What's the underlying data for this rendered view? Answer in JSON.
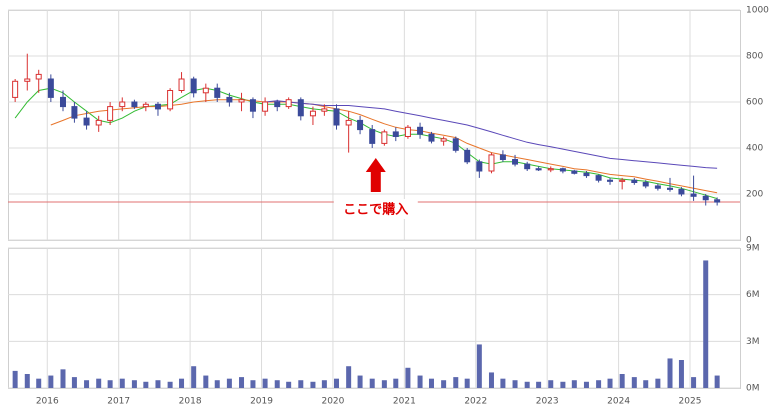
{
  "chart_data": [
    {
      "type": "candlestick",
      "x": [
        2015.55,
        2015.72,
        2015.88,
        2016.05,
        2016.22,
        2016.38,
        2016.55,
        2016.72,
        2016.88,
        2017.05,
        2017.22,
        2017.38,
        2017.55,
        2017.72,
        2017.88,
        2018.05,
        2018.22,
        2018.38,
        2018.55,
        2018.72,
        2018.88,
        2019.05,
        2019.22,
        2019.38,
        2019.55,
        2019.72,
        2019.88,
        2020.05,
        2020.22,
        2020.38,
        2020.55,
        2020.72,
        2020.88,
        2021.05,
        2021.22,
        2021.38,
        2021.55,
        2021.72,
        2021.88,
        2022.05,
        2022.22,
        2022.38,
        2022.55,
        2022.72,
        2022.88,
        2023.05,
        2023.22,
        2023.38,
        2023.55,
        2023.72,
        2023.88,
        2024.05,
        2024.22,
        2024.38,
        2024.55,
        2024.72,
        2024.88,
        2025.05,
        2025.22,
        2025.38
      ],
      "open": [
        620,
        690,
        700,
        700,
        620,
        580,
        530,
        500,
        520,
        580,
        600,
        580,
        590,
        570,
        650,
        700,
        640,
        660,
        620,
        600,
        610,
        560,
        600,
        580,
        610,
        540,
        560,
        570,
        500,
        520,
        480,
        420,
        470,
        450,
        490,
        460,
        430,
        440,
        390,
        340,
        300,
        370,
        350,
        330,
        310,
        305,
        310,
        300,
        290,
        280,
        260,
        255,
        260,
        250,
        235,
        225,
        220,
        200,
        190,
        175
      ],
      "high": [
        700,
        810,
        740,
        720,
        650,
        600,
        560,
        540,
        600,
        620,
        610,
        600,
        600,
        660,
        730,
        710,
        680,
        680,
        640,
        640,
        620,
        620,
        610,
        620,
        620,
        580,
        590,
        590,
        560,
        540,
        500,
        480,
        490,
        500,
        510,
        470,
        450,
        450,
        400,
        350,
        380,
        390,
        370,
        340,
        320,
        320,
        315,
        305,
        300,
        285,
        270,
        270,
        270,
        260,
        245,
        270,
        230,
        280,
        200,
        185
      ],
      "low": [
        600,
        650,
        640,
        600,
        560,
        510,
        480,
        470,
        500,
        560,
        570,
        560,
        540,
        560,
        640,
        620,
        600,
        600,
        580,
        560,
        530,
        540,
        560,
        570,
        520,
        500,
        540,
        480,
        380,
        460,
        400,
        410,
        430,
        440,
        440,
        420,
        410,
        380,
        330,
        270,
        290,
        340,
        320,
        300,
        300,
        295,
        290,
        285,
        270,
        250,
        240,
        220,
        240,
        225,
        215,
        210,
        190,
        170,
        150,
        150
      ],
      "close": [
        690,
        700,
        720,
        620,
        580,
        530,
        500,
        520,
        580,
        600,
        580,
        590,
        570,
        650,
        700,
        640,
        660,
        620,
        600,
        610,
        560,
        600,
        580,
        610,
        540,
        560,
        570,
        500,
        520,
        480,
        420,
        470,
        450,
        490,
        460,
        430,
        440,
        390,
        340,
        300,
        370,
        350,
        330,
        310,
        305,
        310,
        300,
        290,
        280,
        260,
        255,
        260,
        250,
        235,
        225,
        220,
        200,
        190,
        175,
        165
      ],
      "up_color": "#d93030",
      "down_color": "#3b4a9a",
      "moving_averages": [
        {
          "color": "#33bb33",
          "values": [
            530,
            600,
            650,
            660,
            640,
            600,
            560,
            520,
            510,
            530,
            560,
            580,
            585,
            590,
            620,
            650,
            660,
            650,
            630,
            615,
            600,
            590,
            590,
            590,
            580,
            570,
            565,
            560,
            530,
            510,
            480,
            460,
            450,
            460,
            460,
            450,
            440,
            420,
            380,
            340,
            330,
            340,
            340,
            330,
            320,
            310,
            305,
            300,
            295,
            285,
            270,
            265,
            260,
            255,
            245,
            235,
            225,
            210,
            195,
            180
          ]
        },
        {
          "color": "#e8752a",
          "values": [
            null,
            null,
            null,
            500,
            520,
            540,
            550,
            560,
            565,
            570,
            575,
            580,
            580,
            585,
            590,
            600,
            605,
            610,
            610,
            610,
            605,
            600,
            600,
            600,
            595,
            590,
            580,
            570,
            560,
            545,
            525,
            505,
            490,
            480,
            475,
            465,
            455,
            445,
            420,
            400,
            380,
            370,
            360,
            350,
            340,
            330,
            320,
            310,
            305,
            295,
            285,
            280,
            275,
            265,
            255,
            245,
            235,
            225,
            215,
            205
          ]
        },
        {
          "color": "#5a48b8",
          "values": [
            null,
            null,
            null,
            null,
            null,
            null,
            null,
            null,
            null,
            null,
            null,
            null,
            null,
            null,
            null,
            null,
            null,
            null,
            null,
            null,
            null,
            600,
            605,
            600,
            595,
            590,
            585,
            585,
            585,
            580,
            575,
            570,
            560,
            550,
            540,
            530,
            520,
            510,
            500,
            485,
            470,
            455,
            440,
            425,
            415,
            405,
            395,
            385,
            375,
            365,
            355,
            350,
            345,
            340,
            335,
            330,
            325,
            320,
            315,
            312
          ]
        }
      ],
      "reference_line": {
        "value": 165,
        "color": "#e07070"
      },
      "annotation": {
        "text": "ここで購入",
        "x": 2020.6,
        "color": "#e00000"
      },
      "xlim": [
        2015.45,
        2025.7
      ],
      "ylim": [
        0,
        1000
      ],
      "yticks": [
        0,
        200,
        400,
        600,
        800,
        1000
      ],
      "grid": true
    },
    {
      "type": "bar",
      "x": [
        2015.55,
        2015.72,
        2015.88,
        2016.05,
        2016.22,
        2016.38,
        2016.55,
        2016.72,
        2016.88,
        2017.05,
        2017.22,
        2017.38,
        2017.55,
        2017.72,
        2017.88,
        2018.05,
        2018.22,
        2018.38,
        2018.55,
        2018.72,
        2018.88,
        2019.05,
        2019.22,
        2019.38,
        2019.55,
        2019.72,
        2019.88,
        2020.05,
        2020.22,
        2020.38,
        2020.55,
        2020.72,
        2020.88,
        2021.05,
        2021.22,
        2021.38,
        2021.55,
        2021.72,
        2021.88,
        2022.05,
        2022.22,
        2022.38,
        2022.55,
        2022.72,
        2022.88,
        2023.05,
        2023.22,
        2023.38,
        2023.55,
        2023.72,
        2023.88,
        2024.05,
        2024.22,
        2024.38,
        2024.55,
        2024.72,
        2024.88,
        2025.05,
        2025.22,
        2025.38
      ],
      "values": [
        1.1,
        0.9,
        0.6,
        0.8,
        1.2,
        0.7,
        0.5,
        0.6,
        0.5,
        0.6,
        0.5,
        0.4,
        0.5,
        0.4,
        0.6,
        1.4,
        0.8,
        0.5,
        0.6,
        0.7,
        0.5,
        0.6,
        0.5,
        0.4,
        0.5,
        0.4,
        0.5,
        0.6,
        1.4,
        0.8,
        0.6,
        0.5,
        0.6,
        1.3,
        0.8,
        0.6,
        0.5,
        0.7,
        0.6,
        2.8,
        1.0,
        0.6,
        0.5,
        0.4,
        0.4,
        0.5,
        0.4,
        0.5,
        0.4,
        0.5,
        0.6,
        0.9,
        0.7,
        0.5,
        0.6,
        1.9,
        1.8,
        0.7,
        8.2,
        0.8
      ],
      "color": "#5b67ad",
      "xlim": [
        2015.45,
        2025.7
      ],
      "xticks": [
        2016,
        2017,
        2018,
        2019,
        2020,
        2021,
        2022,
        2023,
        2024,
        2025
      ],
      "ylim": [
        0,
        9
      ],
      "yticks": [
        {
          "value": 0,
          "label": "0M"
        },
        {
          "value": 3,
          "label": "3M"
        },
        {
          "value": 6,
          "label": "6M"
        },
        {
          "value": 9,
          "label": "9M"
        }
      ],
      "grid": true
    }
  ]
}
